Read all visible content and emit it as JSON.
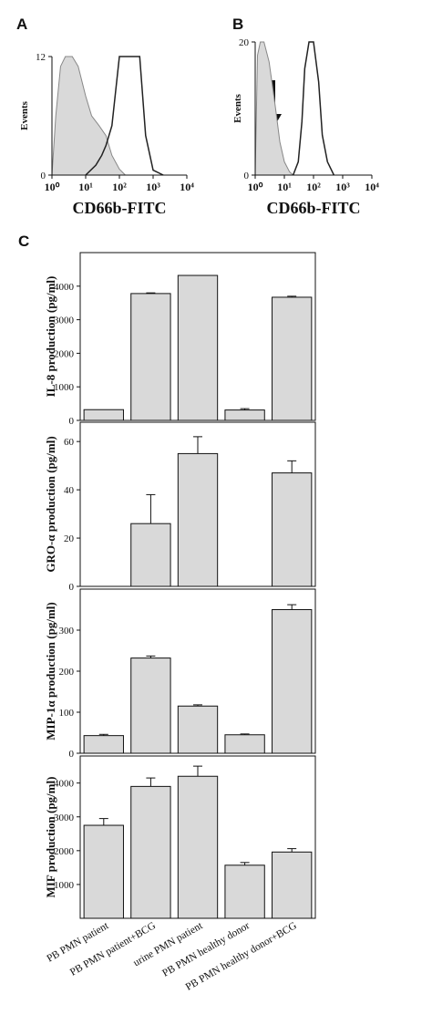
{
  "chart_data": [
    {
      "type": "histogram-flow",
      "panel_label": "A",
      "ylabel": "Events",
      "xlabel": "CD66b-FITC",
      "xlim": [
        1,
        10000
      ],
      "xlog": true,
      "xticks": [
        {
          "value": 1,
          "label": "10⁰"
        },
        {
          "value": 10,
          "label": "10¹"
        },
        {
          "value": 100,
          "label": "10²"
        },
        {
          "value": 1000,
          "label": "10³"
        },
        {
          "value": 10000,
          "label": "10⁴"
        }
      ],
      "ylim": [
        0,
        12
      ],
      "yticks": [
        0,
        12
      ],
      "series": [
        {
          "color": "#d9d9d9",
          "style": "area",
          "x": [
            1,
            1.3,
            1.8,
            2.5,
            4,
            6,
            10,
            15,
            25,
            40,
            60,
            100,
            150
          ],
          "values": [
            0,
            6,
            11,
            12,
            12,
            11,
            8,
            6,
            5,
            4,
            2,
            0.6,
            0
          ]
        },
        {
          "color": "#222222",
          "style": "line",
          "x": [
            10,
            20,
            30,
            40,
            60,
            100,
            200,
            400,
            600,
            1000,
            2000
          ],
          "values": [
            0,
            1,
            2,
            3,
            5,
            12,
            12,
            12,
            4,
            0.5,
            0
          ]
        }
      ]
    },
    {
      "type": "histogram-flow",
      "panel_label": "B",
      "ylabel": "Events",
      "xlabel": "CD66b-FITC",
      "xlim": [
        1,
        10000
      ],
      "xlog": true,
      "xticks": [
        {
          "value": 1,
          "label": "10⁰"
        },
        {
          "value": 10,
          "label": "10¹"
        },
        {
          "value": 100,
          "label": "10²"
        },
        {
          "value": 1000,
          "label": "10³"
        },
        {
          "value": 10000,
          "label": "10⁴"
        }
      ],
      "ylim": [
        0,
        20
      ],
      "yticks": [
        0,
        20
      ],
      "series": [
        {
          "color": "#d9d9d9",
          "style": "area",
          "x": [
            1,
            1.2,
            1.5,
            2,
            3,
            5,
            7,
            10,
            15,
            20
          ],
          "values": [
            0,
            18,
            20,
            20,
            17,
            10,
            5,
            2,
            0.5,
            0
          ]
        },
        {
          "color": "#222222",
          "style": "line",
          "x": [
            20,
            30,
            40,
            50,
            70,
            100,
            150,
            200,
            300,
            500
          ],
          "values": [
            0,
            2,
            8,
            16,
            20,
            20,
            14,
            6,
            2,
            0
          ]
        }
      ]
    },
    {
      "type": "bar",
      "panel_label": "C",
      "ylabel": "IL-8 production (pg/ml)",
      "color": "#d9d9d9",
      "ylim": [
        0,
        5000
      ],
      "yticks": [
        0,
        1000,
        2000,
        3000,
        4000
      ],
      "values": [
        320,
        3780,
        4320,
        310,
        3670
      ],
      "errors": [
        null,
        20,
        null,
        40,
        30
      ]
    },
    {
      "type": "bar",
      "ylabel": "GRO-α production (pg/ml)",
      "color": "#d9d9d9",
      "ylim": [
        0,
        68
      ],
      "yticks": [
        0,
        20,
        40,
        60
      ],
      "values": [
        0,
        26,
        55,
        0,
        47
      ],
      "errors": [
        null,
        12,
        7,
        null,
        5
      ]
    },
    {
      "type": "bar",
      "ylabel": "MIP-1α production (pg/ml)",
      "color": "#d9d9d9",
      "ylim": [
        0,
        400
      ],
      "yticks": [
        0,
        100,
        200,
        300
      ],
      "values": [
        43,
        232,
        115,
        45,
        350
      ],
      "errors": [
        3,
        5,
        3,
        2,
        12
      ]
    },
    {
      "type": "bar",
      "ylabel": "MIF production (pg/ml)",
      "color": "#d9d9d9",
      "ylim": [
        0,
        4800
      ],
      "yticks": [
        1000,
        2000,
        3000,
        4000
      ],
      "categories": [
        "PB PMN patient",
        "PB PMN patient+BCG",
        "urine PMN patient",
        "PB PMN healthy donor",
        "PB PMN healthy donor+BCG"
      ],
      "values": [
        2750,
        3900,
        4200,
        1570,
        1960
      ],
      "errors": [
        200,
        250,
        300,
        80,
        100
      ]
    }
  ]
}
